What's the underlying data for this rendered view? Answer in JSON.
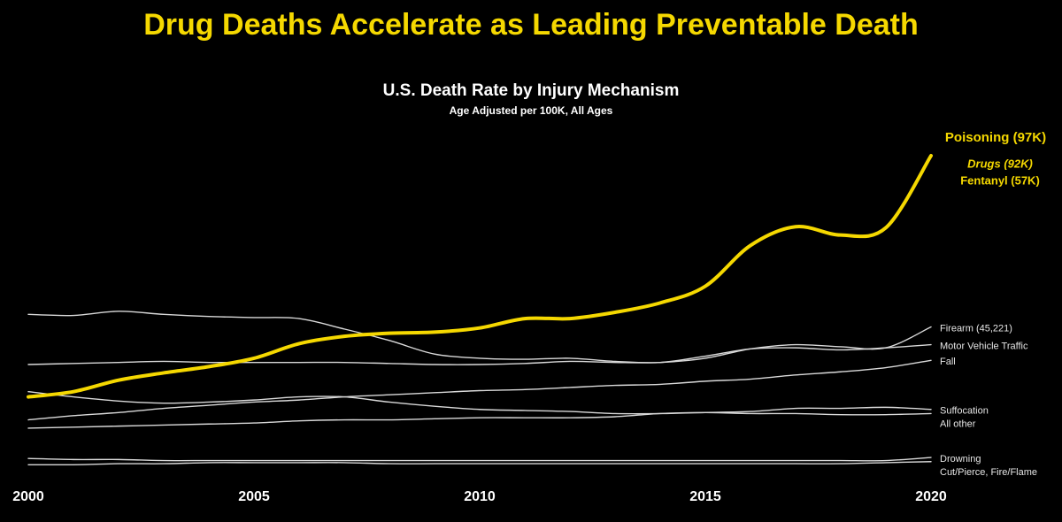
{
  "chart_data": {
    "type": "line",
    "title": "Drug Deaths Accelerate as Leading Preventable Death",
    "chart_title": "U.S. Death Rate by Injury Mechanism",
    "subtitle": "Age Adjusted per 100K, All Ages",
    "annotations": [
      "Drugs (92K)",
      "Fentanyl (57K)"
    ],
    "x": [
      2000,
      2001,
      2002,
      2003,
      2004,
      2005,
      2006,
      2007,
      2008,
      2009,
      2010,
      2011,
      2012,
      2013,
      2014,
      2015,
      2016,
      2017,
      2018,
      2019,
      2020
    ],
    "xlim": [
      2000,
      2020
    ],
    "xticks": [
      2000,
      2005,
      2010,
      2015,
      2020
    ],
    "ylim": [
      0,
      30
    ],
    "series": [
      {
        "name": "Poisoning (97K)",
        "color": "#f5d800",
        "values": [
          6.9,
          7.4,
          8.5,
          9.2,
          9.8,
          10.6,
          12.0,
          12.7,
          13.0,
          13.1,
          13.5,
          14.4,
          14.4,
          15.0,
          15.9,
          17.5,
          21.4,
          23.2,
          22.4,
          23.1,
          30.0
        ]
      },
      {
        "name": "Firearm (45,221)",
        "color": "#d9d9d9",
        "values": [
          10.0,
          10.1,
          10.2,
          10.3,
          10.2,
          10.2,
          10.2,
          10.2,
          10.1,
          10.0,
          10.0,
          10.1,
          10.3,
          10.2,
          10.2,
          10.6,
          11.5,
          11.9,
          11.7,
          11.6,
          13.6
        ]
      },
      {
        "name": "Motor Vehicle Traffic",
        "color": "#d9d9d9",
        "values": [
          14.8,
          14.7,
          15.1,
          14.8,
          14.6,
          14.5,
          14.4,
          13.4,
          12.3,
          11.0,
          10.6,
          10.5,
          10.6,
          10.3,
          10.2,
          10.8,
          11.5,
          11.6,
          11.4,
          11.6,
          11.9
        ]
      },
      {
        "name": "Fall",
        "color": "#d9d9d9",
        "values": [
          4.7,
          5.1,
          5.4,
          5.8,
          6.1,
          6.4,
          6.6,
          6.9,
          7.1,
          7.3,
          7.5,
          7.6,
          7.8,
          8.0,
          8.1,
          8.4,
          8.6,
          9.0,
          9.3,
          9.7,
          10.4
        ]
      },
      {
        "name": "Suffocation",
        "color": "#d9d9d9",
        "values": [
          7.4,
          6.9,
          6.5,
          6.3,
          6.4,
          6.6,
          6.9,
          6.9,
          6.4,
          6.0,
          5.7,
          5.6,
          5.5,
          5.3,
          5.3,
          5.4,
          5.5,
          5.8,
          5.8,
          5.9,
          5.7
        ]
      },
      {
        "name": "All other",
        "color": "#d9d9d9",
        "values": [
          3.9,
          4.0,
          4.1,
          4.2,
          4.3,
          4.4,
          4.6,
          4.7,
          4.7,
          4.8,
          4.9,
          4.9,
          4.9,
          5.0,
          5.3,
          5.4,
          5.3,
          5.3,
          5.2,
          5.2,
          5.3
        ]
      },
      {
        "name": "Drowning",
        "color": "#d9d9d9",
        "values": [
          1.0,
          0.9,
          0.9,
          0.8,
          0.8,
          0.8,
          0.8,
          0.8,
          0.8,
          0.8,
          0.8,
          0.8,
          0.8,
          0.8,
          0.8,
          0.8,
          0.8,
          0.8,
          0.8,
          0.8,
          1.1
        ]
      },
      {
        "name": "Cut/Pierce, Fire/Flame",
        "color": "#d9d9d9",
        "values": [
          0.4,
          0.4,
          0.5,
          0.5,
          0.6,
          0.6,
          0.6,
          0.6,
          0.5,
          0.5,
          0.5,
          0.5,
          0.5,
          0.5,
          0.5,
          0.5,
          0.5,
          0.5,
          0.5,
          0.6,
          0.7
        ]
      }
    ]
  }
}
